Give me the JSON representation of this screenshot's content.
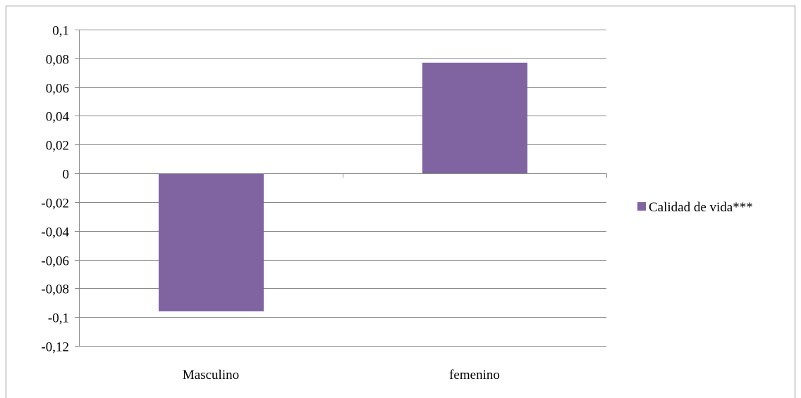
{
  "chart_data": {
    "type": "bar",
    "title": "",
    "xlabel": "",
    "ylabel": "",
    "categories": [
      "Masculino",
      "femenino"
    ],
    "series": [
      {
        "name": "Calidad de vida***",
        "values": [
          -0.096,
          0.077
        ],
        "color": "#8064A2"
      }
    ],
    "ylim": [
      -0.12,
      0.1
    ],
    "yticks": [
      0.1,
      0.08,
      0.06,
      0.04,
      0.02,
      0,
      -0.02,
      -0.04,
      -0.06,
      -0.08,
      -0.1,
      -0.12
    ],
    "ytick_labels": [
      "0,1",
      "0,08",
      "0,06",
      "0,04",
      "0,02",
      "0",
      "-0,02",
      "-0,04",
      "-0,06",
      "-0,08",
      "-0,1",
      "-0,12"
    ],
    "grid": true,
    "legend_position": "right"
  }
}
